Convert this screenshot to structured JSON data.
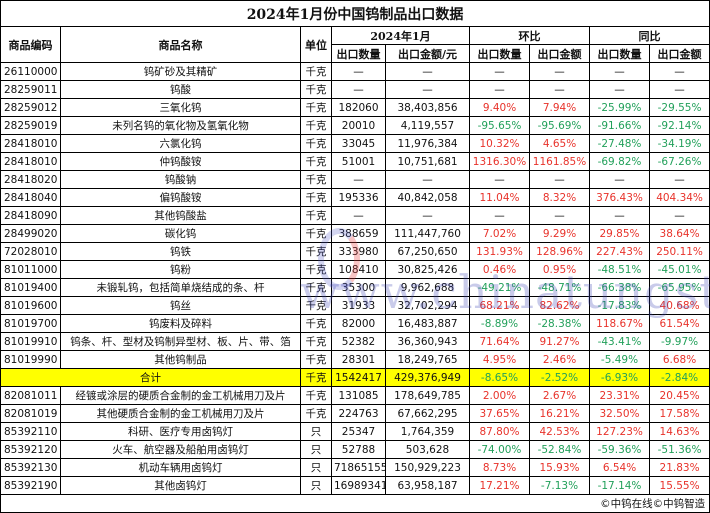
{
  "title": "2024年1月份中国钨制品出口数据",
  "headers": {
    "code": "商品编码",
    "name": "商品名称",
    "unit": "单位",
    "period": "2024年1月",
    "mom": "环比",
    "yoy": "同比",
    "qty": "出口数量",
    "amount": "出口金额/元",
    "amount_short": "出口金额"
  },
  "colors": {
    "positive": "#e8322a",
    "negative": "#22a05a",
    "total_highlight": "#ffff00"
  },
  "rows": [
    {
      "code": "26110000",
      "name": "钨矿砂及其精矿",
      "unit": "千克",
      "qty": "—",
      "amount": "—",
      "mom_qty": "—",
      "mom_amt": "—",
      "yoy_qty": "—",
      "yoy_amt": "—"
    },
    {
      "code": "28259011",
      "name": "钨酸",
      "unit": "千克",
      "qty": "—",
      "amount": "—",
      "mom_qty": "—",
      "mom_amt": "—",
      "yoy_qty": "—",
      "yoy_amt": "—"
    },
    {
      "code": "28259012",
      "name": "三氧化钨",
      "unit": "千克",
      "qty": "182060",
      "amount": "38,403,856",
      "mom_qty": "9.40%",
      "mom_amt": "7.94%",
      "yoy_qty": "-25.99%",
      "yoy_amt": "-29.55%"
    },
    {
      "code": "28259019",
      "name": "未列名钨的氧化物及氢氧化物",
      "unit": "千克",
      "qty": "20010",
      "amount": "4,119,557",
      "mom_qty": "-95.65%",
      "mom_amt": "-95.69%",
      "yoy_qty": "-91.66%",
      "yoy_amt": "-92.14%"
    },
    {
      "code": "28418010",
      "name": "六氯化钨",
      "unit": "千克",
      "qty": "33045",
      "amount": "11,976,384",
      "mom_qty": "10.32%",
      "mom_amt": "4.65%",
      "yoy_qty": "-27.48%",
      "yoy_amt": "-34.19%"
    },
    {
      "code": "28418010",
      "name": "仲钨酸铵",
      "unit": "千克",
      "qty": "51001",
      "amount": "10,751,681",
      "mom_qty": "1316.30%",
      "mom_amt": "1161.85%",
      "yoy_qty": "-69.82%",
      "yoy_amt": "-67.26%"
    },
    {
      "code": "28418020",
      "name": "钨酸钠",
      "unit": "千克",
      "qty": "—",
      "amount": "—",
      "mom_qty": "—",
      "mom_amt": "—",
      "yoy_qty": "—",
      "yoy_amt": "—"
    },
    {
      "code": "28418040",
      "name": "偏钨酸铵",
      "unit": "千克",
      "qty": "195336",
      "amount": "40,842,058",
      "mom_qty": "11.04%",
      "mom_amt": "8.32%",
      "yoy_qty": "376.43%",
      "yoy_amt": "404.34%"
    },
    {
      "code": "28418090",
      "name": "其他钨酸盐",
      "unit": "千克",
      "qty": "—",
      "amount": "—",
      "mom_qty": "—",
      "mom_amt": "—",
      "yoy_qty": "—",
      "yoy_amt": "—"
    },
    {
      "code": "28499020",
      "name": "碳化钨",
      "unit": "千克",
      "qty": "388659",
      "amount": "111,447,760",
      "mom_qty": "7.02%",
      "mom_amt": "9.29%",
      "yoy_qty": "29.85%",
      "yoy_amt": "38.64%"
    },
    {
      "code": "72028010",
      "name": "钨铁",
      "unit": "千克",
      "qty": "333980",
      "amount": "67,250,650",
      "mom_qty": "131.93%",
      "mom_amt": "128.96%",
      "yoy_qty": "227.43%",
      "yoy_amt": "250.11%"
    },
    {
      "code": "81011000",
      "name": "钨粉",
      "unit": "千克",
      "qty": "108410",
      "amount": "30,825,426",
      "mom_qty": "0.46%",
      "mom_amt": "0.95%",
      "yoy_qty": "-48.51%",
      "yoy_amt": "-45.01%"
    },
    {
      "code": "81019400",
      "name": "未锻轧钨，包括简单烧结成的条、杆",
      "unit": "千克",
      "qty": "35300",
      "amount": "9,962,688",
      "mom_qty": "-49.21%",
      "mom_amt": "-48.71%",
      "yoy_qty": "-66.38%",
      "yoy_amt": "-65.95%"
    },
    {
      "code": "81019600",
      "name": "钨丝",
      "unit": "千克",
      "qty": "31933",
      "amount": "32,702,294",
      "mom_qty": "68.21%",
      "mom_amt": "82.62%",
      "yoy_qty": "-17.83%",
      "yoy_amt": "40.68%"
    },
    {
      "code": "81019700",
      "name": "钨废料及碎料",
      "unit": "千克",
      "qty": "82000",
      "amount": "16,483,887",
      "mom_qty": "-8.89%",
      "mom_amt": "-28.38%",
      "yoy_qty": "118.67%",
      "yoy_amt": "61.54%"
    },
    {
      "code": "81019910",
      "name": "钨条、杆、型材及钨制异型材、板、片、带、箔",
      "unit": "千克",
      "qty": "52382",
      "amount": "36,360,943",
      "mom_qty": "71.64%",
      "mom_amt": "91.27%",
      "yoy_qty": "-43.41%",
      "yoy_amt": "-9.97%"
    },
    {
      "code": "81019990",
      "name": "其他钨制品",
      "unit": "千克",
      "qty": "28301",
      "amount": "18,249,765",
      "mom_qty": "4.95%",
      "mom_amt": "2.46%",
      "yoy_qty": "-5.49%",
      "yoy_amt": "6.68%"
    }
  ],
  "total": {
    "name": "合计",
    "unit": "千克",
    "qty": "1542417",
    "amount": "429,376,949",
    "mom_qty": "-8.65%",
    "mom_amt": "-2.52%",
    "yoy_qty": "-6.93%",
    "yoy_amt": "-2.84%"
  },
  "rows2": [
    {
      "code": "82081011",
      "name": "经镀或涂层的硬质合金制的金工机械用刀及片",
      "unit": "千克",
      "qty": "131085",
      "amount": "178,649,785",
      "mom_qty": "2.00%",
      "mom_amt": "2.67%",
      "yoy_qty": "23.31%",
      "yoy_amt": "20.45%"
    },
    {
      "code": "82081019",
      "name": "其他硬质合金制的金工机械用刀及片",
      "unit": "千克",
      "qty": "224763",
      "amount": "67,662,295",
      "mom_qty": "37.65%",
      "mom_amt": "16.21%",
      "yoy_qty": "32.50%",
      "yoy_amt": "17.58%"
    },
    {
      "code": "85392110",
      "name": "科研、医疗专用卤钨灯",
      "unit": "只",
      "qty": "25347",
      "amount": "1,764,359",
      "mom_qty": "87.80%",
      "mom_amt": "42.53%",
      "yoy_qty": "127.23%",
      "yoy_amt": "14.63%"
    },
    {
      "code": "85392120",
      "name": "火车、航空器及船舶用卤钨灯",
      "unit": "只",
      "qty": "52788",
      "amount": "503,628",
      "mom_qty": "-74.00%",
      "mom_amt": "-52.84%",
      "yoy_qty": "-59.36%",
      "yoy_amt": "-51.36%"
    },
    {
      "code": "85392130",
      "name": "机动车辆用卤钨灯",
      "unit": "只",
      "qty": "71865155",
      "amount": "150,929,223",
      "mom_qty": "8.73%",
      "mom_amt": "15.93%",
      "yoy_qty": "6.54%",
      "yoy_amt": "21.83%"
    },
    {
      "code": "85392190",
      "name": "其他卤钨灯",
      "unit": "只",
      "qty": "16989341",
      "amount": "63,958,187",
      "mom_qty": "17.21%",
      "mom_amt": "-7.13%",
      "yoy_qty": "-17.14%",
      "yoy_amt": "15.55%"
    }
  ],
  "footer": "©中钨在线©中钨智造",
  "watermark": "www.chinatungsten.com"
}
